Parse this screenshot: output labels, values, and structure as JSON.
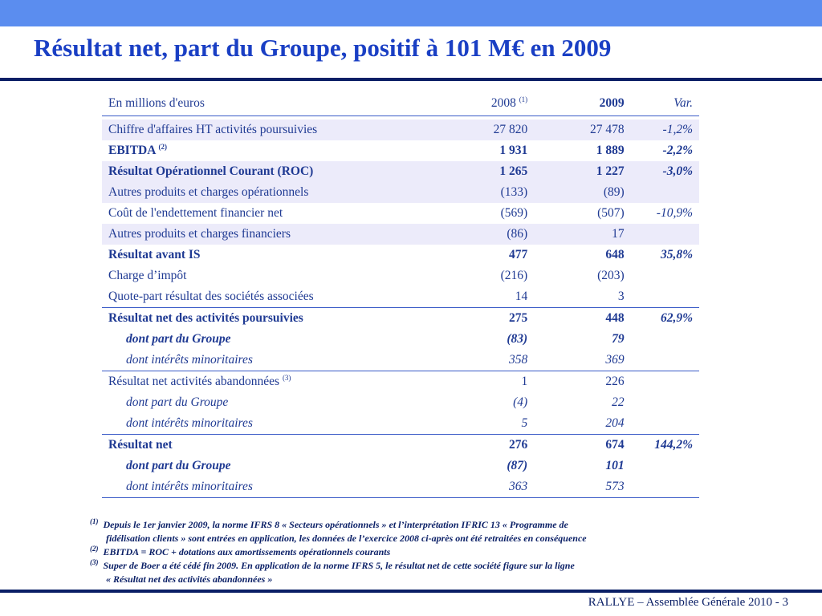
{
  "title": "Résultat net, part du Groupe, positif à 101 M€ en 2009",
  "table": {
    "header": {
      "label": "En millions d'euros",
      "col2008": "2008",
      "col2008_note": "(1)",
      "col2009": "2009",
      "colvar": "Var."
    },
    "rows": [
      {
        "label": "Chiffre d'affaires HT activités poursuivies",
        "note": "",
        "v2008": "27 820",
        "v2009": "27 478",
        "var": "-1,2%"
      },
      {
        "label": "EBITDA",
        "note": "(2)",
        "v2008": "1 931",
        "v2009": "1 889",
        "var": "-2,2%"
      },
      {
        "label": "Résultat Opérationnel Courant (ROC)",
        "note": "",
        "v2008": "1 265",
        "v2009": "1 227",
        "var": "-3,0%"
      },
      {
        "label": "Autres produits et charges opérationnels",
        "note": "",
        "v2008": "(133)",
        "v2009": "(89)",
        "var": ""
      },
      {
        "label": "Coût de l'endettement financier net",
        "note": "",
        "v2008": "(569)",
        "v2009": "(507)",
        "var": "-10,9%"
      },
      {
        "label": "Autres produits et charges financiers",
        "note": "",
        "v2008": "(86)",
        "v2009": "17",
        "var": ""
      },
      {
        "label": "Résultat avant IS",
        "note": "",
        "v2008": "477",
        "v2009": "648",
        "var": "35,8%"
      },
      {
        "label": "Charge d’impôt",
        "note": "",
        "v2008": "(216)",
        "v2009": "(203)",
        "var": ""
      },
      {
        "label": "Quote-part résultat des sociétés associées",
        "note": "",
        "v2008": "14",
        "v2009": "3",
        "var": ""
      },
      {
        "label": "Résultat net des activités poursuivies",
        "note": "",
        "v2008": "275",
        "v2009": "448",
        "var": "62,9%"
      },
      {
        "label": "dont part du Groupe",
        "note": "",
        "v2008": "(83)",
        "v2009": "79",
        "var": ""
      },
      {
        "label": "dont intérêts minoritaires",
        "note": "",
        "v2008": "358",
        "v2009": "369",
        "var": ""
      },
      {
        "label": "Résultat net activités abandonnées",
        "note": "(3)",
        "v2008": "1",
        "v2009": "226",
        "var": ""
      },
      {
        "label": "dont part du Groupe",
        "note": "",
        "v2008": "(4)",
        "v2009": "22",
        "var": ""
      },
      {
        "label": "dont intérêts minoritaires",
        "note": "",
        "v2008": "5",
        "v2009": "204",
        "var": ""
      },
      {
        "label": "Résultat net",
        "note": "",
        "v2008": "276",
        "v2009": "674",
        "var": "144,2%"
      },
      {
        "label": "dont part du Groupe",
        "note": "",
        "v2008": "(87)",
        "v2009": "101",
        "var": ""
      },
      {
        "label": "dont intérêts minoritaires",
        "note": "",
        "v2008": "363",
        "v2009": "573",
        "var": ""
      }
    ]
  },
  "notes": {
    "n1_mark": "(1)",
    "n1_line1": "Depuis le 1er janvier 2009, la norme IFRS 8 « Secteurs opérationnels » et l’interprétation IFRIC 13 « Programme de",
    "n1_line2": "fidélisation  clients » sont entrées en application, les données de l’exercice 2008 ci-après ont été retraitées en conséquence",
    "n2_mark": "(2)",
    "n2_text": "EBITDA = ROC + dotations aux amortissements opérationnels courants",
    "n3_mark": "(3)",
    "n3_line1": "Super de Boer a été cédé fin 2009. En application de la norme IFRS 5, le résultat net de cette société figure sur la ligne",
    "n3_line2": "« Résultat net des activités abandonnées »"
  },
  "footer": "RALLYE – Assemblée Générale 2010  -  3"
}
